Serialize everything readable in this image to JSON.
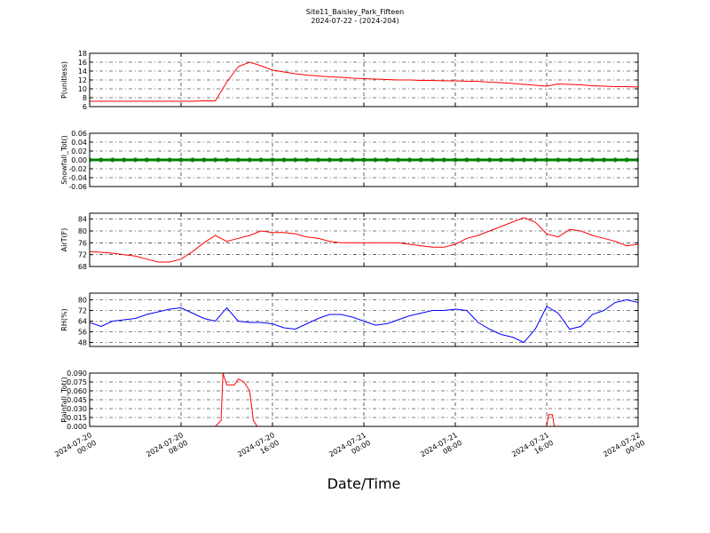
{
  "chart_data": [
    {
      "type": "line",
      "title": "Site11_Baisley_Park_Fifteen",
      "subtitle": "2024-07-22 - (2024-204)",
      "ylabel": "P(unitless)",
      "color": "#ff0000",
      "grid": true,
      "ylim": [
        6,
        18
      ],
      "yticks": [
        6,
        8,
        10,
        12,
        14,
        16,
        18
      ],
      "x": [
        "2024-07-20 00:00",
        "2024-07-20 01:00",
        "2024-07-20 02:00",
        "2024-07-20 03:00",
        "2024-07-20 04:00",
        "2024-07-20 05:00",
        "2024-07-20 06:00",
        "2024-07-20 07:00",
        "2024-07-20 08:00",
        "2024-07-20 09:00",
        "2024-07-20 10:00",
        "2024-07-20 11:00",
        "2024-07-20 12:00",
        "2024-07-20 13:00",
        "2024-07-20 14:00",
        "2024-07-20 15:00",
        "2024-07-20 16:00",
        "2024-07-20 17:00",
        "2024-07-20 18:00",
        "2024-07-20 19:00",
        "2024-07-20 20:00",
        "2024-07-20 21:00",
        "2024-07-20 22:00",
        "2024-07-20 23:00",
        "2024-07-21 00:00",
        "2024-07-21 01:00",
        "2024-07-21 02:00",
        "2024-07-21 03:00",
        "2024-07-21 04:00",
        "2024-07-21 05:00",
        "2024-07-21 06:00",
        "2024-07-21 07:00",
        "2024-07-21 08:00",
        "2024-07-21 09:00",
        "2024-07-21 10:00",
        "2024-07-21 11:00",
        "2024-07-21 12:00",
        "2024-07-21 13:00",
        "2024-07-21 14:00",
        "2024-07-21 15:00",
        "2024-07-21 16:00",
        "2024-07-21 17:00",
        "2024-07-21 18:00",
        "2024-07-21 19:00",
        "2024-07-21 20:00",
        "2024-07-21 21:00",
        "2024-07-21 22:00",
        "2024-07-21 23:00",
        "2024-07-22 00:00"
      ],
      "values": [
        7.2,
        7.2,
        7.2,
        7.2,
        7.2,
        7.2,
        7.2,
        7.2,
        7.2,
        7.2,
        7.3,
        7.3,
        11.5,
        15,
        16,
        15.2,
        14.2,
        13.8,
        13.4,
        13.1,
        12.9,
        12.7,
        12.6,
        12.4,
        12.3,
        12.2,
        12.1,
        12,
        12,
        11.9,
        11.9,
        11.8,
        11.8,
        11.7,
        11.7,
        11.5,
        11.4,
        11.2,
        11,
        10.8,
        10.6,
        11.1,
        11,
        10.9,
        10.7,
        10.6,
        10.5,
        10.5,
        10.4
      ]
    },
    {
      "type": "line",
      "ylabel": "Snowfall_Tot()",
      "color": "#008000",
      "markers": true,
      "grid": true,
      "ylim": [
        -0.06,
        0.06
      ],
      "yticks": [
        {
          "value": -0.06,
          "label": "-0.06"
        },
        {
          "value": -0.04,
          "label": "-0.04"
        },
        {
          "value": -0.02,
          "label": "-0.02"
        },
        {
          "value": 0,
          "label": "0.00"
        },
        {
          "value": 0.02,
          "label": "0.02"
        },
        {
          "value": 0.04,
          "label": "0.04"
        },
        {
          "value": 0.06,
          "label": "0.06"
        }
      ],
      "x": [
        "2024-07-20 00:00",
        "2024-07-20 01:00",
        "2024-07-20 02:00",
        "2024-07-20 03:00",
        "2024-07-20 04:00",
        "2024-07-20 05:00",
        "2024-07-20 06:00",
        "2024-07-20 07:00",
        "2024-07-20 08:00",
        "2024-07-20 09:00",
        "2024-07-20 10:00",
        "2024-07-20 11:00",
        "2024-07-20 12:00",
        "2024-07-20 13:00",
        "2024-07-20 14:00",
        "2024-07-20 15:00",
        "2024-07-20 16:00",
        "2024-07-20 17:00",
        "2024-07-20 18:00",
        "2024-07-20 19:00",
        "2024-07-20 20:00",
        "2024-07-20 21:00",
        "2024-07-20 22:00",
        "2024-07-20 23:00",
        "2024-07-21 00:00",
        "2024-07-21 01:00",
        "2024-07-21 02:00",
        "2024-07-21 03:00",
        "2024-07-21 04:00",
        "2024-07-21 05:00",
        "2024-07-21 06:00",
        "2024-07-21 07:00",
        "2024-07-21 08:00",
        "2024-07-21 09:00",
        "2024-07-21 10:00",
        "2024-07-21 11:00",
        "2024-07-21 12:00",
        "2024-07-21 13:00",
        "2024-07-21 14:00",
        "2024-07-21 15:00",
        "2024-07-21 16:00",
        "2024-07-21 17:00",
        "2024-07-21 18:00",
        "2024-07-21 19:00",
        "2024-07-21 20:00",
        "2024-07-21 21:00",
        "2024-07-21 22:00",
        "2024-07-21 23:00",
        "2024-07-22 00:00"
      ],
      "values": [
        0,
        0,
        0,
        0,
        0,
        0,
        0,
        0,
        0,
        0,
        0,
        0,
        0,
        0,
        0,
        0,
        0,
        0,
        0,
        0,
        0,
        0,
        0,
        0,
        0,
        0,
        0,
        0,
        0,
        0,
        0,
        0,
        0,
        0,
        0,
        0,
        0,
        0,
        0,
        0,
        0,
        0,
        0,
        0,
        0,
        0,
        0,
        0,
        0
      ]
    },
    {
      "type": "line",
      "ylabel": "AirT(F)",
      "color": "#ff0000",
      "grid": true,
      "ylim": [
        68,
        86
      ],
      "yticks": [
        68,
        72,
        76,
        80,
        84
      ],
      "x": [
        "2024-07-20 00:00",
        "2024-07-20 01:00",
        "2024-07-20 02:00",
        "2024-07-20 03:00",
        "2024-07-20 04:00",
        "2024-07-20 05:00",
        "2024-07-20 06:00",
        "2024-07-20 07:00",
        "2024-07-20 08:00",
        "2024-07-20 09:00",
        "2024-07-20 10:00",
        "2024-07-20 11:00",
        "2024-07-20 12:00",
        "2024-07-20 13:00",
        "2024-07-20 14:00",
        "2024-07-20 15:00",
        "2024-07-20 16:00",
        "2024-07-20 17:00",
        "2024-07-20 18:00",
        "2024-07-20 19:00",
        "2024-07-20 20:00",
        "2024-07-20 21:00",
        "2024-07-20 22:00",
        "2024-07-20 23:00",
        "2024-07-21 00:00",
        "2024-07-21 01:00",
        "2024-07-21 02:00",
        "2024-07-21 03:00",
        "2024-07-21 04:00",
        "2024-07-21 05:00",
        "2024-07-21 06:00",
        "2024-07-21 07:00",
        "2024-07-21 08:00",
        "2024-07-21 09:00",
        "2024-07-21 10:00",
        "2024-07-21 11:00",
        "2024-07-21 12:00",
        "2024-07-21 13:00",
        "2024-07-21 14:00",
        "2024-07-21 15:00",
        "2024-07-21 16:00",
        "2024-07-21 17:00",
        "2024-07-21 18:00",
        "2024-07-21 19:00",
        "2024-07-21 20:00",
        "2024-07-21 21:00",
        "2024-07-21 22:00",
        "2024-07-21 23:00",
        "2024-07-22 00:00"
      ],
      "values": [
        73,
        72.8,
        72.5,
        72,
        71.5,
        70.5,
        69.5,
        69.5,
        70.5,
        73,
        76,
        78.5,
        76.5,
        77.5,
        78.5,
        80,
        79.5,
        79.5,
        79,
        78,
        77.5,
        76.5,
        76,
        76,
        76,
        76,
        76,
        76,
        75.5,
        75,
        74.5,
        74.5,
        75.5,
        77.5,
        78.5,
        80,
        81.5,
        83,
        84.5,
        83,
        79,
        78,
        80.5,
        80,
        78.5,
        77.5,
        76.5,
        75,
        75.5
      ]
    },
    {
      "type": "line",
      "ylabel": "RH(%)",
      "color": "#0000ff",
      "grid": true,
      "ylim": [
        45,
        85
      ],
      "yticks": [
        48,
        56,
        64,
        72,
        80
      ],
      "x": [
        "2024-07-20 00:00",
        "2024-07-20 01:00",
        "2024-07-20 02:00",
        "2024-07-20 03:00",
        "2024-07-20 04:00",
        "2024-07-20 05:00",
        "2024-07-20 06:00",
        "2024-07-20 07:00",
        "2024-07-20 08:00",
        "2024-07-20 09:00",
        "2024-07-20 10:00",
        "2024-07-20 11:00",
        "2024-07-20 12:00",
        "2024-07-20 13:00",
        "2024-07-20 14:00",
        "2024-07-20 15:00",
        "2024-07-20 16:00",
        "2024-07-20 17:00",
        "2024-07-20 18:00",
        "2024-07-20 19:00",
        "2024-07-20 20:00",
        "2024-07-20 21:00",
        "2024-07-20 22:00",
        "2024-07-20 23:00",
        "2024-07-21 00:00",
        "2024-07-21 01:00",
        "2024-07-21 02:00",
        "2024-07-21 03:00",
        "2024-07-21 04:00",
        "2024-07-21 05:00",
        "2024-07-21 06:00",
        "2024-07-21 07:00",
        "2024-07-21 08:00",
        "2024-07-21 09:00",
        "2024-07-21 10:00",
        "2024-07-21 11:00",
        "2024-07-21 12:00",
        "2024-07-21 13:00",
        "2024-07-21 14:00",
        "2024-07-21 15:00",
        "2024-07-21 16:00",
        "2024-07-21 17:00",
        "2024-07-21 18:00",
        "2024-07-21 19:00",
        "2024-07-21 20:00",
        "2024-07-21 21:00",
        "2024-07-21 22:00",
        "2024-07-21 23:00",
        "2024-07-22 00:00"
      ],
      "values": [
        63,
        60,
        64,
        65,
        66,
        69,
        71,
        73,
        74,
        70,
        66,
        64,
        74,
        64,
        63,
        63,
        62,
        59,
        58,
        62,
        66,
        69,
        69,
        67,
        64,
        61,
        62,
        65,
        68,
        70,
        72,
        72,
        73,
        72,
        63,
        58,
        54,
        52,
        48,
        58,
        75,
        70,
        58,
        60,
        69,
        72,
        78,
        80,
        78
      ]
    },
    {
      "type": "line",
      "ylabel": "Rainfall_Tot()",
      "xlabel": "Date/Time",
      "color": "#ff0000",
      "grid": true,
      "ylim": [
        0,
        0.09
      ],
      "yticks": [
        {
          "value": 0,
          "label": "0.000"
        },
        {
          "value": 0.015,
          "label": "0.015"
        },
        {
          "value": 0.03,
          "label": "0.030"
        },
        {
          "value": 0.045,
          "label": "0.045"
        },
        {
          "value": 0.06,
          "label": "0.060"
        },
        {
          "value": 0.075,
          "label": "0.075"
        },
        {
          "value": 0.09,
          "label": "0.090"
        }
      ],
      "xlim": [
        "2024-07-20 00:00",
        "2024-07-22 00:00"
      ],
      "xticks": [
        "2024-07-20 00:00",
        "2024-07-20 08:00",
        "2024-07-20 16:00",
        "2024-07-21 00:00",
        "2024-07-21 08:00",
        "2024-07-21 16:00",
        "2024-07-22 00:00"
      ],
      "x": [
        "2024-07-20 00:00",
        "2024-07-20 11:00",
        "2024-07-20 11:30",
        "2024-07-20 11:40",
        "2024-07-20 12:00",
        "2024-07-20 12:40",
        "2024-07-20 13:00",
        "2024-07-20 13:30",
        "2024-07-20 14:00",
        "2024-07-20 14:20",
        "2024-07-20 14:40",
        "2024-07-21 16:00",
        "2024-07-21 16:10",
        "2024-07-21 16:30",
        "2024-07-21 16:40",
        "2024-07-22 00:00"
      ],
      "values": [
        0,
        0,
        0.01,
        0.09,
        0.07,
        0.07,
        0.08,
        0.075,
        0.06,
        0.01,
        0,
        0,
        0.02,
        0.02,
        0,
        0
      ]
    }
  ]
}
